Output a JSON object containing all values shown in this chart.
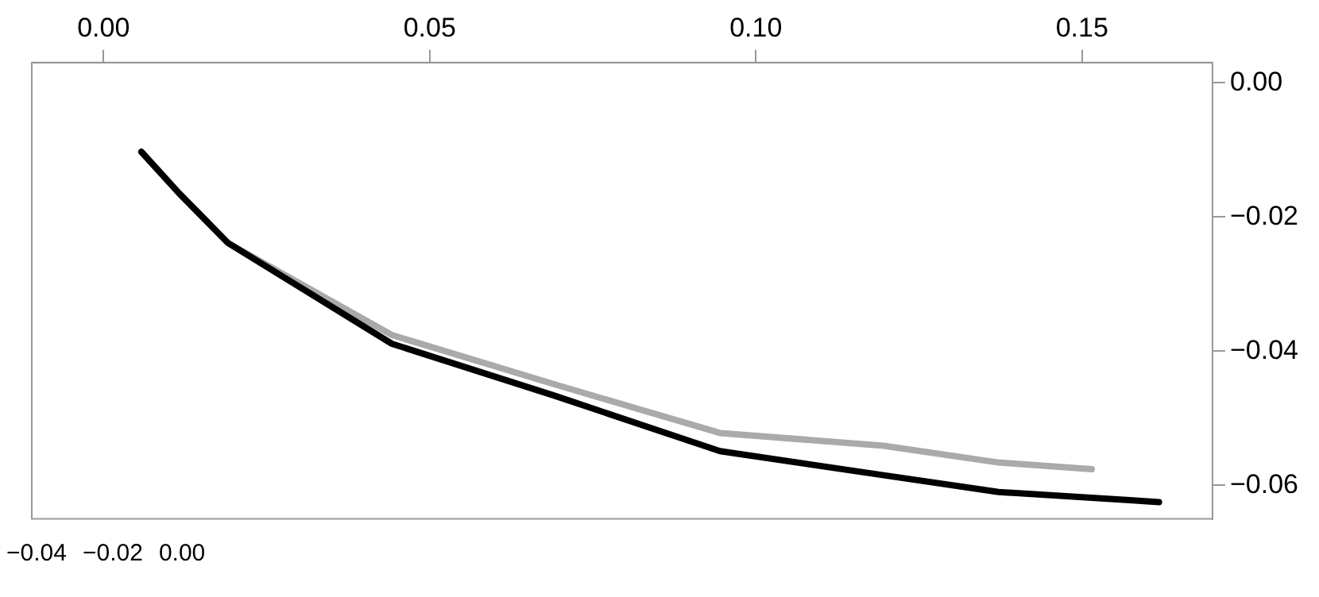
{
  "chart_data": {
    "type": "line",
    "xlim": [
      -0.011,
      0.17
    ],
    "xticks": [
      {
        "value": 0,
        "label": "0.00"
      },
      {
        "value": 0.05,
        "label": "0.05"
      },
      {
        "value": 0.1,
        "label": "0.10"
      },
      {
        "value": 0.15,
        "label": "0.15"
      }
    ],
    "ylim": [
      -0.065,
      0.003
    ],
    "yticks": [
      {
        "value": 0,
        "label": "0.00"
      },
      {
        "value": -0.02,
        "label": "−0.02"
      },
      {
        "value": -0.04,
        "label": "−0.04"
      },
      {
        "value": -0.06,
        "label": "−0.06"
      }
    ],
    "grid": false,
    "legend": false,
    "marker": "none",
    "line_style": "solid",
    "series": [
      {
        "color": "#000000",
        "x": [
          0.0058,
          0.0116,
          0.0191,
          0.0442,
          0.0693,
          0.0945,
          0.1196,
          0.1372,
          0.1573,
          0.1618
        ],
        "values": [
          -0.0103,
          -0.0165,
          -0.0239,
          -0.0389,
          -0.0467,
          -0.0549,
          -0.0585,
          -0.061,
          -0.0622,
          -0.0625
        ]
      },
      {
        "color": "#aaaaaa",
        "x": [
          0.0058,
          0.0116,
          0.0191,
          0.0442,
          0.0693,
          0.0945,
          0.1196,
          0.1372,
          0.1515
        ],
        "values": [
          -0.0103,
          -0.0165,
          -0.0239,
          -0.0376,
          -0.045,
          -0.0522,
          -0.0541,
          -0.0566,
          -0.0576
        ]
      }
    ],
    "annotations": [
      "−0.04",
      "−0.02",
      "0.00"
    ]
  }
}
